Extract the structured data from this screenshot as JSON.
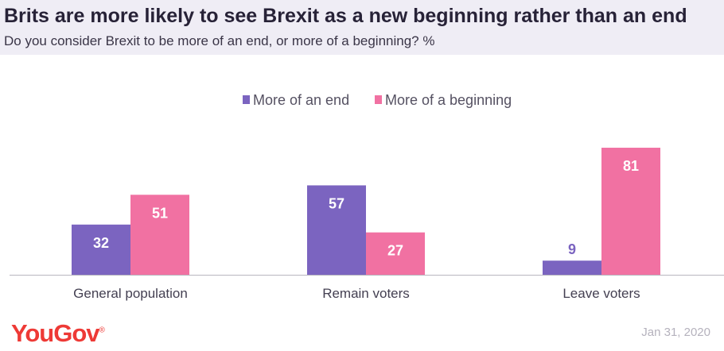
{
  "header": {
    "title": "Brits are more likely to see Brexit as a new beginning rather than an end",
    "subtitle": "Do you consider Brexit to be more of an end, or more of a beginning? %"
  },
  "chart_data": {
    "type": "bar",
    "title": "Brits are more likely to see Brexit as a new beginning rather than an end",
    "subtitle": "Do you consider Brexit to be more of an end, or more of a beginning? %",
    "categories": [
      "General population",
      "Remain voters",
      "Leave voters"
    ],
    "series": [
      {
        "name": "More of an end",
        "values": [
          32,
          57,
          9
        ],
        "color": "#7b64c0",
        "label_color": "#ffffff"
      },
      {
        "name": "More of a beginning",
        "values": [
          51,
          27,
          81
        ],
        "color": "#f171a2",
        "label_color": "#ffffff"
      }
    ],
    "small_value_label_color": "#7b64c0",
    "xlabel": "",
    "ylabel": "",
    "ylim": [
      0,
      85
    ],
    "grid": false,
    "legend_position": "top-center"
  },
  "footer": {
    "brand": "YouGov",
    "brand_mark": "®",
    "date": "Jan 31, 2020"
  }
}
